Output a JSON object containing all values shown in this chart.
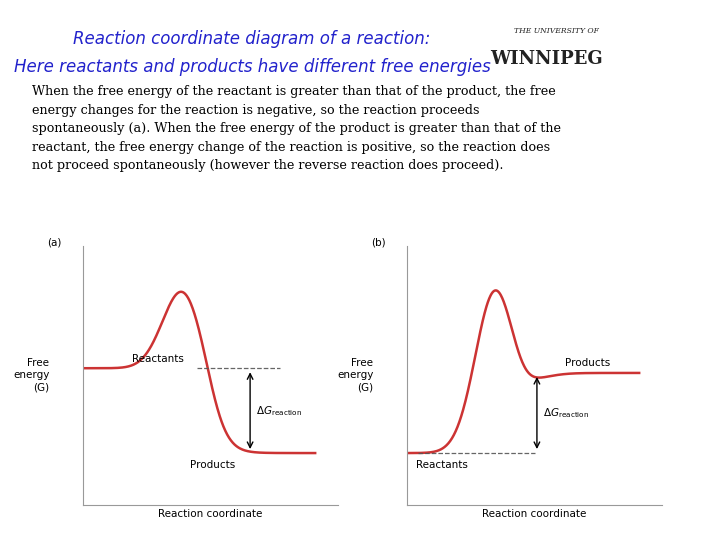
{
  "title_line1": "Reaction coordinate diagram of a reaction:",
  "title_line2": "Here reactants and products have different free energies",
  "title_color": "#2222cc",
  "title_fontsize": 12,
  "body_text": "When the free energy of the reactant is greater than that of the product, the free\nenergy changes for the reaction is negative, so the reaction proceeds\nspontaneously (a). When the free energy of the product is greater than that of the\nreactant, the free energy change of the reaction is positive, so the reaction does\nnot proceed spontaneously (however the reverse reaction does proceed).",
  "body_fontsize": 9.2,
  "header_bar_color": "#cc0000",
  "background_color": "#ffffff",
  "curve_color": "#cc3333",
  "curve_linewidth": 1.8,
  "axis_color": "#888888",
  "label_fontsize": 7.5,
  "annotation_fontsize": 7.5,
  "diagram_a_label": "(a)",
  "diagram_b_label": "(b)",
  "reactants_label_a": "Reactants",
  "products_label_a": "Products",
  "reactants_label_b": "Reactants",
  "products_label_b": "Products",
  "ylabel_text": "Free\nenergy\n(G)",
  "xlabel": "Reaction coordinate",
  "dashed_color": "#555555",
  "arrow_color": "#000000",
  "logo_small_text": "THE UNIVERSITY OF",
  "logo_large_text": "WINNIPEG"
}
